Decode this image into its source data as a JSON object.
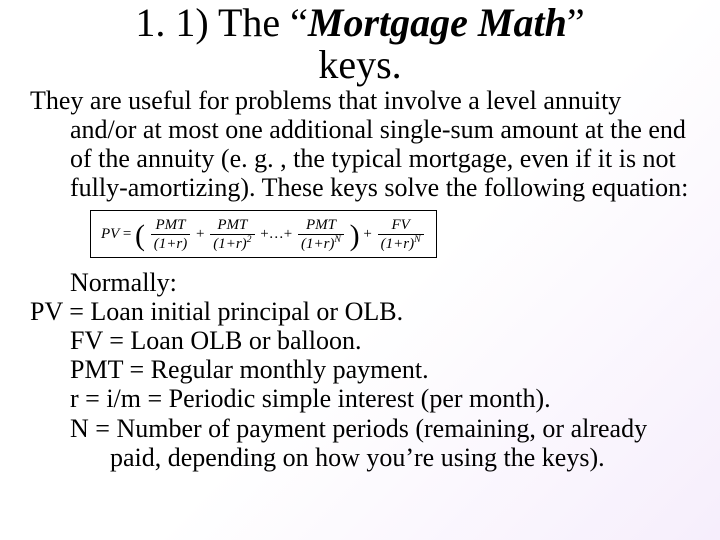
{
  "title": {
    "prefix": "1. 1)   The “",
    "italic": "Mortgage Math",
    "suffix": "” keys."
  },
  "paragraph": "They are useful for problems that involve a level annuity and/or at most one additional single-sum amount at the end of the annuity (e. g. , the typical mortgage, even if it is not fully-amortizing). These keys solve the following equation:",
  "equation": {
    "lhs": "PV",
    "terms": [
      {
        "num": "PMT",
        "den_base": "(1+r)",
        "exp": ""
      },
      {
        "num": "PMT",
        "den_base": "(1+r)",
        "exp": "2"
      },
      {
        "num": "PMT",
        "den_base": "(1+r)",
        "exp": "N"
      }
    ],
    "ellipsis": "+…+",
    "tail": {
      "num": "FV",
      "den_base": "(1+r)",
      "exp": "N"
    }
  },
  "defs_header": "Normally:",
  "defs": [
    "PV = Loan initial principal or OLB.",
    "FV = Loan OLB or balloon.",
    "PMT = Regular monthly payment.",
    "r = i/m = Periodic simple interest (per month).",
    "N = Number of payment periods (remaining, or already paid, depending on how you’re using the keys)."
  ],
  "style": {
    "title_fontsize": 40,
    "body_fontsize": 26,
    "eq_fontsize": 15,
    "text_color": "#000000",
    "background": "#ffffff"
  }
}
